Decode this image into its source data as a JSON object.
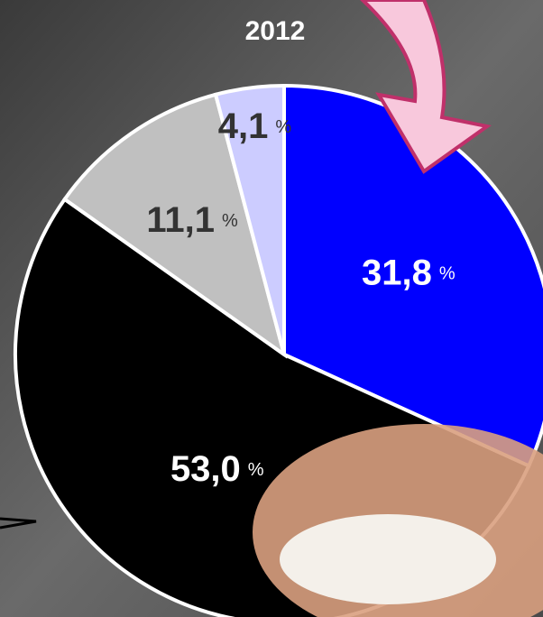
{
  "chart_data": {
    "type": "pie",
    "title": "2012",
    "categories": [
      null,
      null,
      null,
      null
    ],
    "values": [
      31.8,
      53.0,
      11.1,
      4.1
    ],
    "value_labels": [
      "31,8",
      "53,0",
      "11,1",
      "4,1"
    ],
    "unit": "%",
    "colors": [
      "#0000ff",
      "#000000",
      "#c0c0c0",
      "#ccccff"
    ],
    "label_colors": [
      "#ffffff",
      "#ffffff",
      "#333333",
      "#333333"
    ]
  }
}
